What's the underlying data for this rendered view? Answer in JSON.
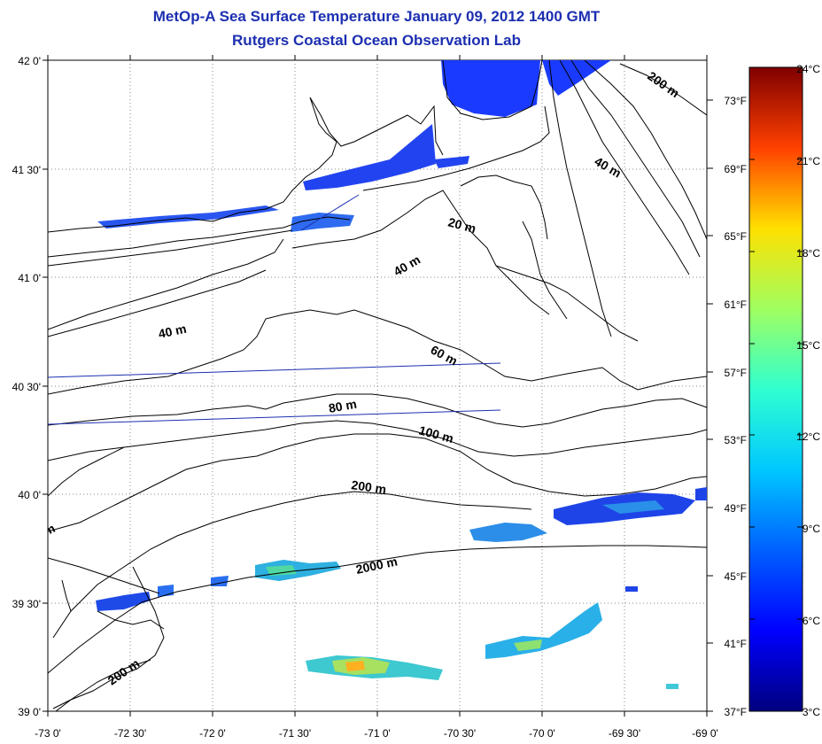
{
  "title": "MetOp-A Sea Surface Temperature January 09, 2012 1400 GMT",
  "subtitle": "Rutgers Coastal Ocean Observation Lab",
  "map": {
    "lon_labels": [
      "-73 0'",
      "-72 30'",
      "-72 0'",
      "-71 30'",
      "-71 0'",
      "-70 30'",
      "-70 0'",
      "-69 30'",
      "-69 0'"
    ],
    "lat_labels": [
      "42 0'",
      "41 30'",
      "41 0'",
      "40 30'",
      "40 0'",
      "39 30'",
      "39 0'"
    ],
    "fahrenheit_labels": [
      "73°F",
      "69°F",
      "65°F",
      "61°F",
      "57°F",
      "53°F",
      "49°F",
      "45°F",
      "41°F",
      "37°F"
    ],
    "depth_labels": [
      "200 m",
      "40 m",
      "20 m",
      "40 m",
      "40 m",
      "60 m",
      "80 m",
      "100 m",
      "200 m",
      "2000 m",
      "200 m",
      "m"
    ]
  },
  "colorbar": {
    "celsius_labels": [
      "24°C",
      "21°C",
      "18°C",
      "15°C",
      "12°C",
      "9°C",
      "6°C",
      "3°C"
    ],
    "colors": [
      "#00007f",
      "#0000ff",
      "#007fff",
      "#00ffff",
      "#7fff7f",
      "#ffff00",
      "#ff7f00",
      "#ff0000",
      "#7f0000"
    ]
  }
}
